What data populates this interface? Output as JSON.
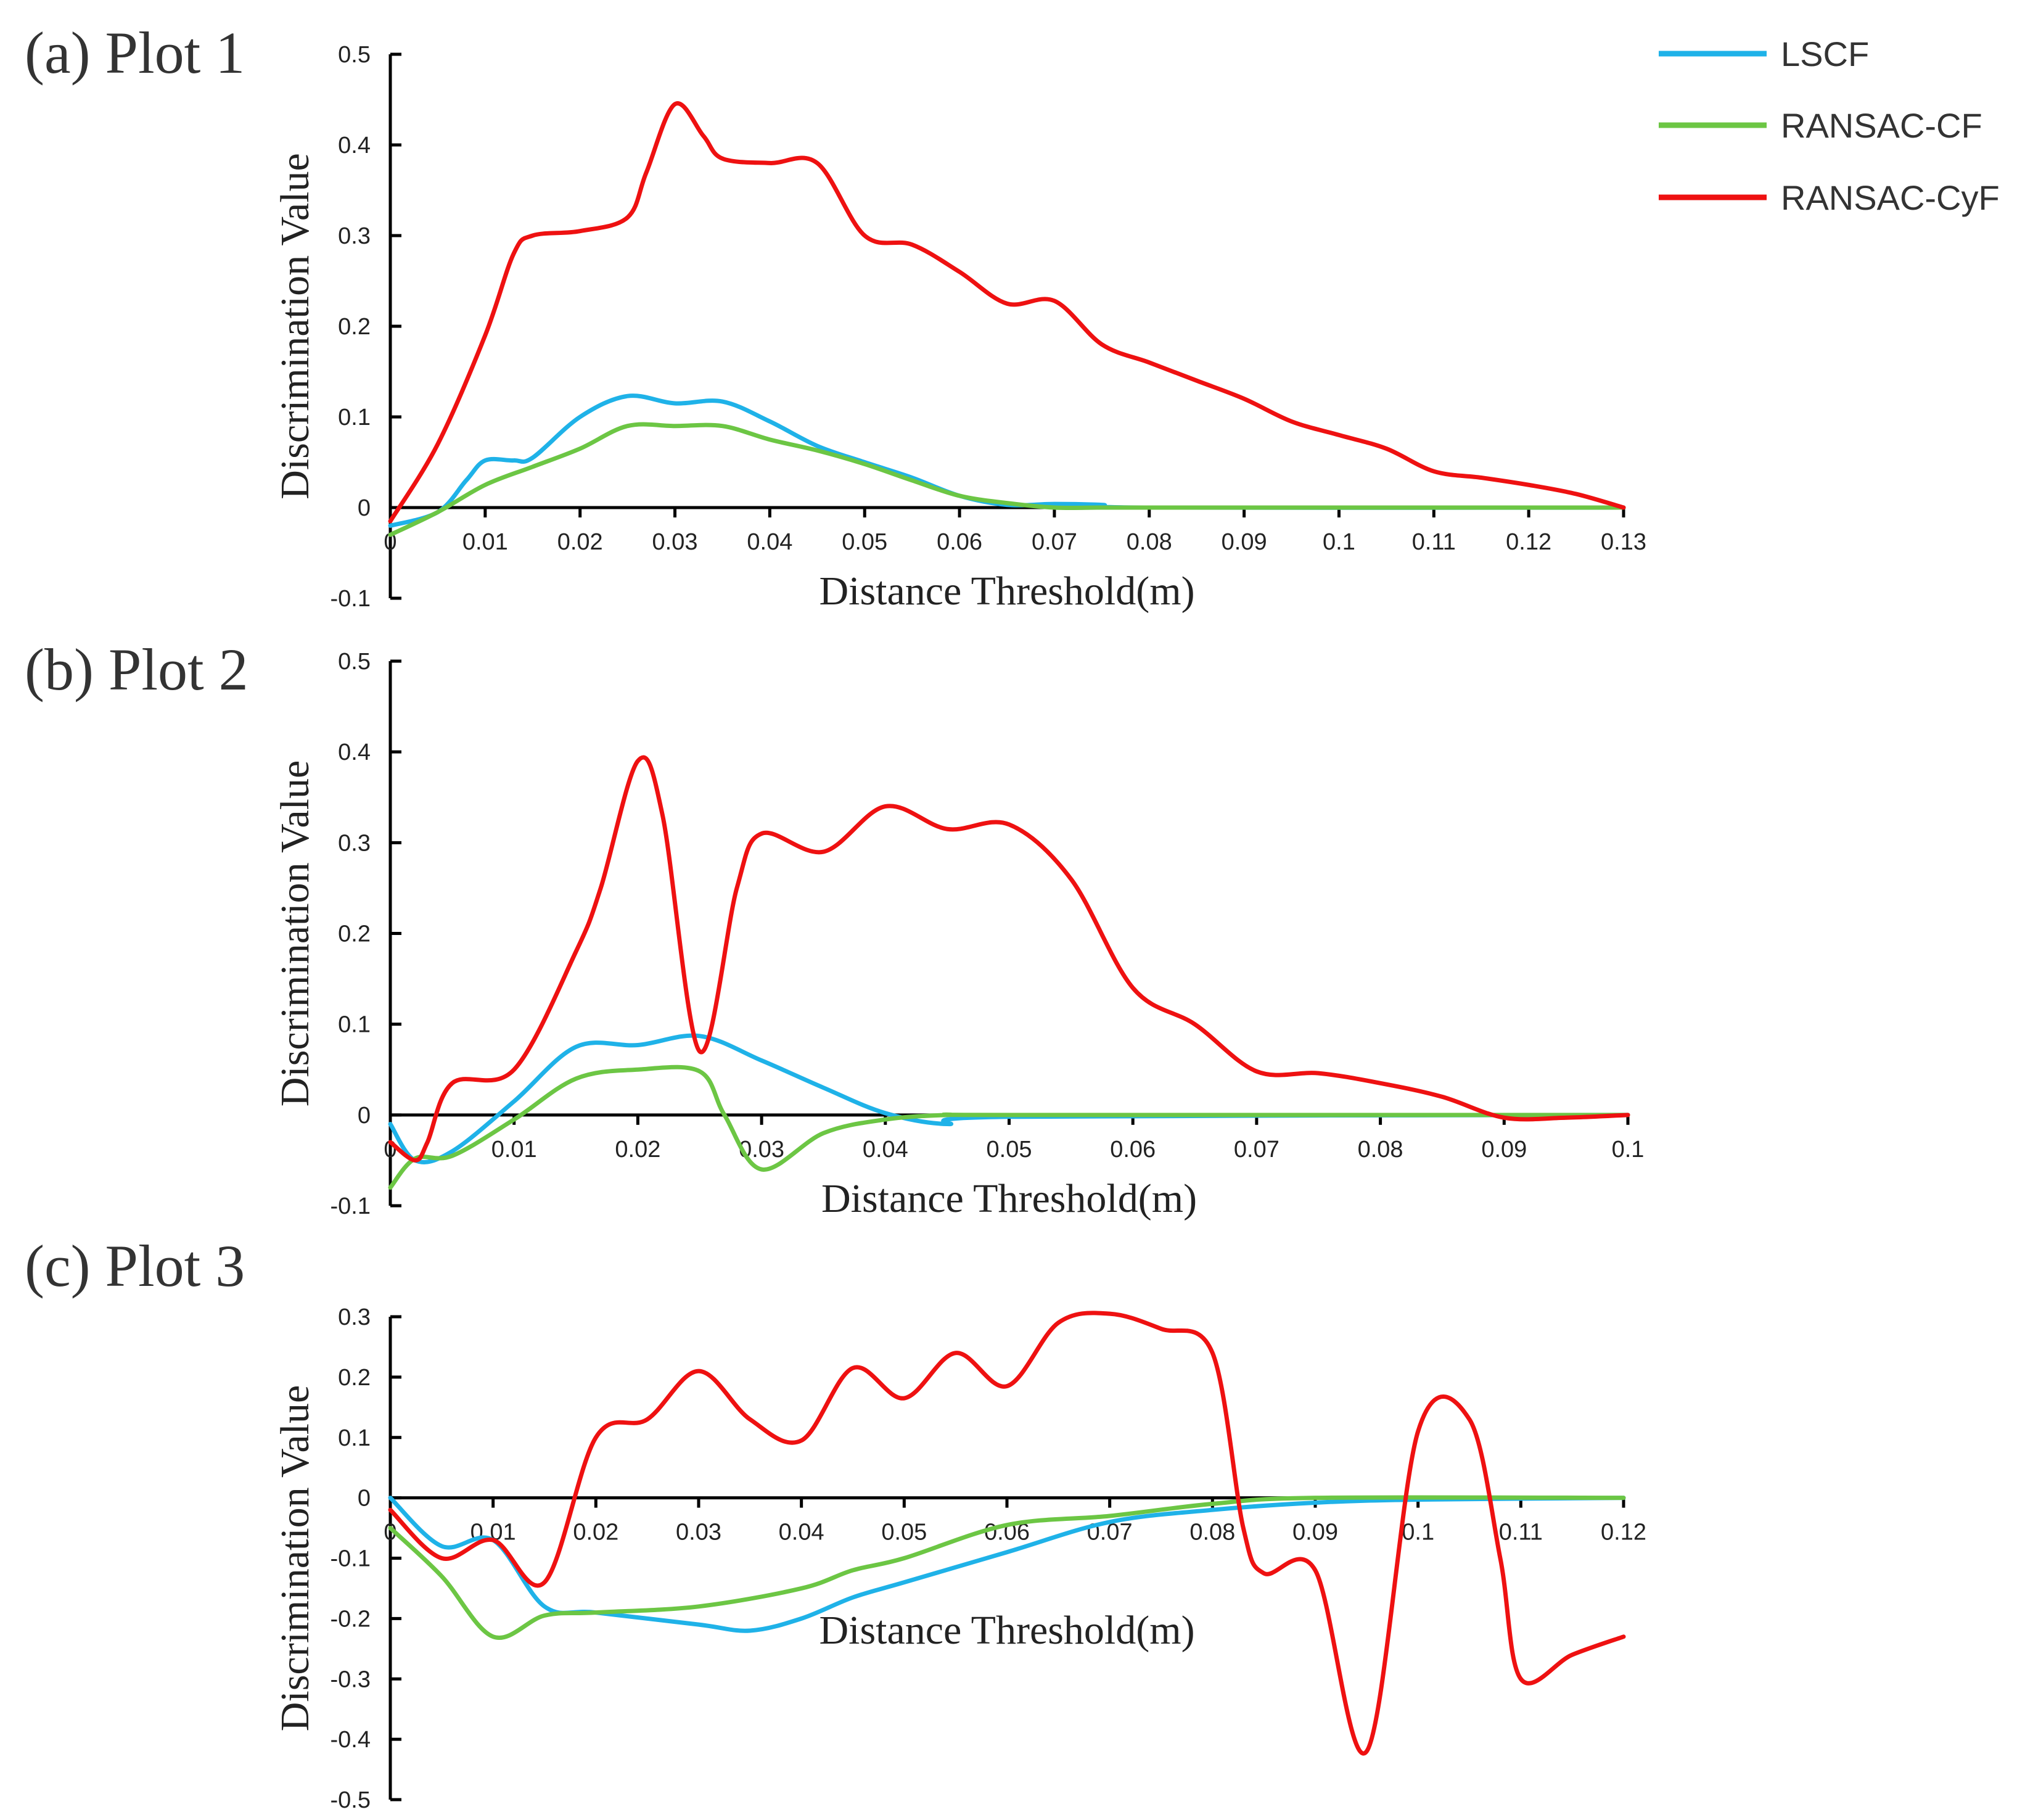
{
  "colors": {
    "LSCF": "#1fb2e8",
    "RANSAC-CF": "#6cc644",
    "RANSAC-CyF": "#ee1111"
  },
  "legend": [
    {
      "name": "LSCF",
      "color": "#1fb2e8"
    },
    {
      "name": "RANSAC-CF",
      "color": "#6cc644"
    },
    {
      "name": "RANSAC-CyF",
      "color": "#ee1111"
    }
  ],
  "chart_data": [
    {
      "type": "line",
      "label": "(a) Plot 1",
      "xlabel": "Distance Threshold(m)",
      "ylabel": "Discrimination Value",
      "xlim": [
        0,
        0.13
      ],
      "ylim": [
        -0.1,
        0.5
      ],
      "xticks": [
        0,
        0.01,
        0.02,
        0.03,
        0.04,
        0.05,
        0.06,
        0.07,
        0.08,
        0.09,
        0.1,
        0.11,
        0.12,
        0.13
      ],
      "xtick_labels": [
        "0",
        "0.01",
        "0.02",
        "0.03",
        "0.04",
        "0.05",
        "0.06",
        "0.07",
        "0.08",
        "0.09",
        "0.1",
        "0.11",
        "0.12",
        "0.13"
      ],
      "yticks": [
        -0.1,
        0,
        0.1,
        0.2,
        0.3,
        0.4,
        0.5
      ],
      "ytick_labels": [
        "-0.1",
        "0",
        "0.1",
        "0.2",
        "0.3",
        "0.4",
        "0.5"
      ],
      "series": [
        {
          "name": "LSCF",
          "x": [
            0,
            0.005,
            0.008,
            0.01,
            0.013,
            0.015,
            0.02,
            0.025,
            0.03,
            0.035,
            0.04,
            0.045,
            0.05,
            0.055,
            0.06,
            0.065,
            0.07,
            0.075,
            0.08,
            0.13
          ],
          "y": [
            -0.02,
            -0.005,
            0.03,
            0.052,
            0.052,
            0.055,
            0.1,
            0.123,
            0.115,
            0.117,
            0.095,
            0.068,
            0.05,
            0.033,
            0.013,
            0.003,
            0.004,
            0.003,
            0,
            0
          ]
        },
        {
          "name": "RANSAC-CF",
          "x": [
            0,
            0.005,
            0.01,
            0.015,
            0.02,
            0.025,
            0.03,
            0.035,
            0.04,
            0.045,
            0.05,
            0.055,
            0.06,
            0.065,
            0.07,
            0.075,
            0.08,
            0.13
          ],
          "y": [
            -0.03,
            -0.005,
            0.025,
            0.045,
            0.065,
            0.09,
            0.09,
            0.09,
            0.075,
            0.063,
            0.048,
            0.03,
            0.013,
            0.005,
            0,
            0,
            0,
            0
          ]
        },
        {
          "name": "RANSAC-CyF",
          "x": [
            0,
            0.005,
            0.01,
            0.013,
            0.015,
            0.02,
            0.025,
            0.027,
            0.03,
            0.033,
            0.035,
            0.04,
            0.045,
            0.05,
            0.055,
            0.06,
            0.065,
            0.07,
            0.075,
            0.08,
            0.085,
            0.09,
            0.095,
            0.1,
            0.105,
            0.11,
            0.115,
            0.12,
            0.125,
            0.13
          ],
          "y": [
            -0.015,
            0.07,
            0.19,
            0.28,
            0.3,
            0.305,
            0.32,
            0.37,
            0.445,
            0.41,
            0.385,
            0.38,
            0.38,
            0.3,
            0.29,
            0.26,
            0.225,
            0.228,
            0.18,
            0.16,
            0.14,
            0.12,
            0.095,
            0.08,
            0.065,
            0.04,
            0.033,
            0.025,
            0.015,
            0
          ]
        }
      ]
    },
    {
      "type": "line",
      "label": "(b) Plot 2",
      "xlabel": "Distance Threshold(m)",
      "ylabel": "Discrimination Value",
      "xlim": [
        0,
        0.1
      ],
      "ylim": [
        -0.1,
        0.5
      ],
      "xticks": [
        0,
        0.01,
        0.02,
        0.03,
        0.04,
        0.05,
        0.06,
        0.07,
        0.08,
        0.09,
        0.1
      ],
      "xtick_labels": [
        "0",
        "0.01",
        "0.02",
        "0.03",
        "0.04",
        "0.05",
        "0.06",
        "0.07",
        "0.08",
        "0.09",
        "0.1"
      ],
      "yticks": [
        -0.1,
        0,
        0.1,
        0.2,
        0.3,
        0.4,
        0.5
      ],
      "ytick_labels": [
        "-0.1",
        "0",
        "0.1",
        "0.2",
        "0.3",
        "0.4",
        "0.5"
      ],
      "series": [
        {
          "name": "LSCF",
          "x": [
            0,
            0.002,
            0.005,
            0.01,
            0.015,
            0.02,
            0.025,
            0.03,
            0.035,
            0.04,
            0.045,
            0.05,
            0.1
          ],
          "y": [
            -0.01,
            -0.05,
            -0.04,
            0.015,
            0.075,
            0.077,
            0.087,
            0.06,
            0.03,
            0.002,
            -0.01,
            -0.002,
            0
          ]
        },
        {
          "name": "RANSAC-CF",
          "x": [
            0,
            0.002,
            0.005,
            0.01,
            0.015,
            0.02,
            0.025,
            0.027,
            0.03,
            0.035,
            0.04,
            0.045,
            0.05,
            0.1
          ],
          "y": [
            -0.08,
            -0.048,
            -0.045,
            -0.005,
            0.04,
            0.05,
            0.048,
            0.0,
            -0.06,
            -0.02,
            -0.005,
            0,
            0,
            0
          ]
        },
        {
          "name": "RANSAC-CyF",
          "x": [
            0,
            0.002,
            0.003,
            0.005,
            0.01,
            0.015,
            0.017,
            0.02,
            0.022,
            0.025,
            0.028,
            0.03,
            0.035,
            0.04,
            0.045,
            0.05,
            0.055,
            0.06,
            0.065,
            0.07,
            0.075,
            0.08,
            0.085,
            0.09,
            0.095,
            0.1
          ],
          "y": [
            -0.03,
            -0.05,
            -0.03,
            0.035,
            0.05,
            0.18,
            0.25,
            0.39,
            0.33,
            0.07,
            0.25,
            0.31,
            0.29,
            0.34,
            0.315,
            0.32,
            0.26,
            0.14,
            0.1,
            0.048,
            0.046,
            0.035,
            0.02,
            -0.003,
            -0.003,
            0
          ]
        }
      ]
    },
    {
      "type": "line",
      "label": "(c) Plot 3",
      "xlabel": "Distance Threshold(m)",
      "ylabel": "Discrimination Value",
      "xlim": [
        0,
        0.12
      ],
      "ylim": [
        -0.5,
        0.3
      ],
      "xticks": [
        0,
        0.01,
        0.02,
        0.03,
        0.04,
        0.05,
        0.06,
        0.07,
        0.08,
        0.09,
        0.1,
        0.11,
        0.12
      ],
      "xtick_labels": [
        "0",
        "0.01",
        "0.02",
        "0.03",
        "0.04",
        "0.05",
        "0.06",
        "0.07",
        "0.08",
        "0.09",
        "0.1",
        "0.11",
        "0.12"
      ],
      "yticks": [
        -0.5,
        -0.4,
        -0.3,
        -0.2,
        -0.1,
        0,
        0.1,
        0.2,
        0.3
      ],
      "ytick_labels": [
        "-0.5",
        "-0.4",
        "-0.3",
        "-0.2",
        "-0.1",
        "0",
        "0.1",
        "0.2",
        "0.3"
      ],
      "series": [
        {
          "name": "LSCF",
          "x": [
            0,
            0.005,
            0.01,
            0.015,
            0.02,
            0.03,
            0.035,
            0.04,
            0.045,
            0.05,
            0.06,
            0.07,
            0.08,
            0.09,
            0.1,
            0.12
          ],
          "y": [
            0,
            -0.08,
            -0.07,
            -0.18,
            -0.19,
            -0.21,
            -0.22,
            -0.2,
            -0.165,
            -0.14,
            -0.09,
            -0.04,
            -0.02,
            -0.008,
            -0.003,
            0
          ]
        },
        {
          "name": "RANSAC-CF",
          "x": [
            0,
            0.005,
            0.01,
            0.015,
            0.02,
            0.03,
            0.04,
            0.045,
            0.05,
            0.06,
            0.07,
            0.08,
            0.09,
            0.12
          ],
          "y": [
            -0.05,
            -0.13,
            -0.23,
            -0.195,
            -0.19,
            -0.18,
            -0.15,
            -0.12,
            -0.1,
            -0.045,
            -0.03,
            -0.01,
            0,
            0
          ]
        },
        {
          "name": "RANSAC-CyF",
          "x": [
            0,
            0.005,
            0.01,
            0.015,
            0.02,
            0.025,
            0.03,
            0.035,
            0.04,
            0.045,
            0.05,
            0.055,
            0.06,
            0.065,
            0.07,
            0.075,
            0.08,
            0.083,
            0.085,
            0.09,
            0.095,
            0.1,
            0.105,
            0.108,
            0.11,
            0.115,
            0.12
          ],
          "y": [
            -0.02,
            -0.1,
            -0.07,
            -0.14,
            0.1,
            0.13,
            0.21,
            0.13,
            0.095,
            0.215,
            0.165,
            0.24,
            0.185,
            0.29,
            0.305,
            0.28,
            0.24,
            -0.05,
            -0.125,
            -0.12,
            -0.42,
            0.11,
            0.13,
            -0.1,
            -0.3,
            -0.26,
            -0.23
          ]
        }
      ]
    }
  ]
}
